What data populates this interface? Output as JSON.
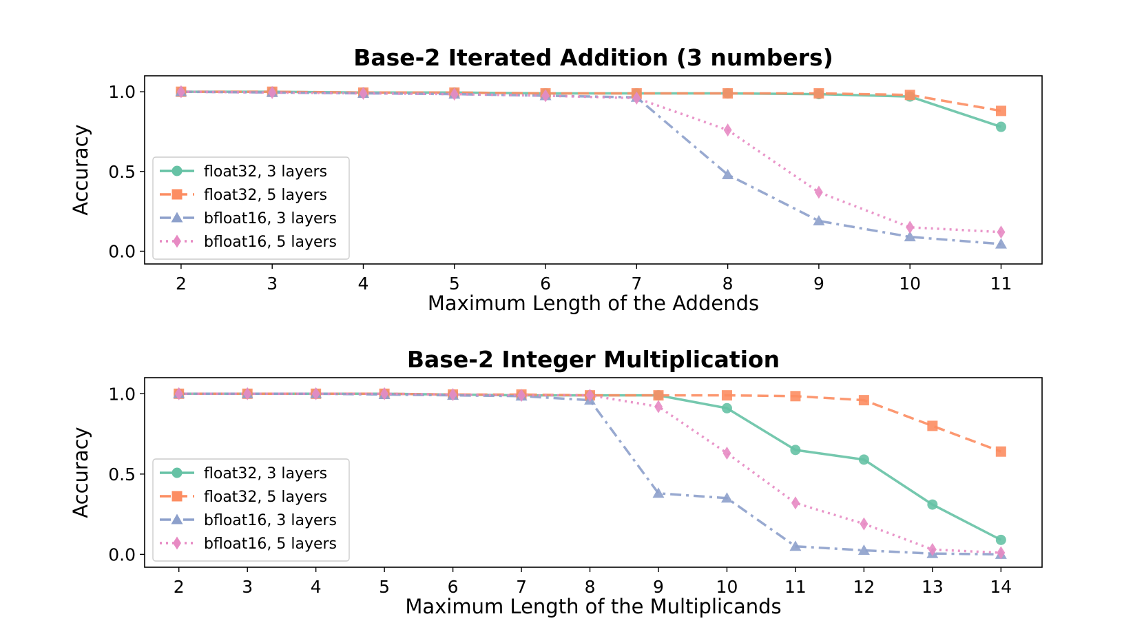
{
  "colors": {
    "float32_3": "#66c2a5",
    "float32_5": "#fc8d62",
    "bfloat16_3": "#8da0cb",
    "bfloat16_5": "#e78ac3"
  },
  "chart_data": [
    {
      "type": "line",
      "title": "Base-2 Iterated Addition (3 numbers)",
      "xlabel": "Maximum Length of the Addends",
      "ylabel": "Accuracy",
      "x": [
        2,
        3,
        4,
        5,
        6,
        7,
        8,
        9,
        10,
        11
      ],
      "xlim": [
        1.6,
        11.45
      ],
      "ylim": [
        -0.08,
        1.1
      ],
      "yticks": [
        0.0,
        0.5,
        1.0
      ],
      "ytick_labels": [
        "0.0",
        "0.5",
        "1.0"
      ],
      "grid": false,
      "legend_position": "lower-left",
      "series": [
        {
          "name": "float32, 3 layers",
          "color": "#66c2a5",
          "marker": "circle",
          "linestyle": "solid",
          "values": [
            1.0,
            1.0,
            0.995,
            0.995,
            0.99,
            0.99,
            0.99,
            0.985,
            0.97,
            0.78
          ]
        },
        {
          "name": "float32, 5 layers",
          "color": "#fc8d62",
          "marker": "square",
          "linestyle": "dashed",
          "values": [
            1.0,
            1.0,
            0.995,
            0.995,
            0.99,
            0.99,
            0.99,
            0.99,
            0.98,
            0.88
          ]
        },
        {
          "name": "bfloat16, 3 layers",
          "color": "#8da0cb",
          "marker": "triangle",
          "linestyle": "dashdot",
          "values": [
            1.0,
            0.995,
            0.99,
            0.985,
            0.975,
            0.965,
            0.48,
            0.19,
            0.09,
            0.045
          ]
        },
        {
          "name": "bfloat16, 5 layers",
          "color": "#e78ac3",
          "marker": "diamond",
          "linestyle": "dotted",
          "values": [
            1.0,
            0.995,
            0.99,
            0.985,
            0.975,
            0.96,
            0.76,
            0.37,
            0.15,
            0.12
          ]
        }
      ]
    },
    {
      "type": "line",
      "title": "Base-2 Integer Multiplication",
      "xlabel": "Maximum Length of the Multiplicands",
      "ylabel": "Accuracy",
      "x": [
        2,
        3,
        4,
        5,
        6,
        7,
        8,
        9,
        10,
        11,
        12,
        13,
        14
      ],
      "xlim": [
        1.5,
        14.6
      ],
      "ylim": [
        -0.08,
        1.1
      ],
      "yticks": [
        0.0,
        0.5,
        1.0
      ],
      "ytick_labels": [
        "0.0",
        "0.5",
        "1.0"
      ],
      "grid": false,
      "legend_position": "lower-left",
      "series": [
        {
          "name": "float32, 3 layers",
          "color": "#66c2a5",
          "marker": "circle",
          "linestyle": "solid",
          "values": [
            1.0,
            1.0,
            1.0,
            1.0,
            0.995,
            0.99,
            0.99,
            0.99,
            0.91,
            0.65,
            0.59,
            0.31,
            0.09
          ]
        },
        {
          "name": "float32, 5 layers",
          "color": "#fc8d62",
          "marker": "square",
          "linestyle": "dashed",
          "values": [
            1.0,
            1.0,
            1.0,
            1.0,
            0.995,
            0.995,
            0.99,
            0.99,
            0.99,
            0.985,
            0.96,
            0.8,
            0.64
          ]
        },
        {
          "name": "bfloat16, 3 layers",
          "color": "#8da0cb",
          "marker": "triangle",
          "linestyle": "dashdot",
          "values": [
            1.0,
            1.0,
            1.0,
            0.995,
            0.99,
            0.985,
            0.96,
            0.38,
            0.35,
            0.05,
            0.025,
            0.005,
            0.0
          ]
        },
        {
          "name": "bfloat16, 5 layers",
          "color": "#e78ac3",
          "marker": "diamond",
          "linestyle": "dotted",
          "values": [
            1.0,
            1.0,
            1.0,
            1.0,
            0.995,
            0.99,
            0.99,
            0.92,
            0.63,
            0.32,
            0.19,
            0.03,
            0.01
          ]
        }
      ]
    }
  ]
}
